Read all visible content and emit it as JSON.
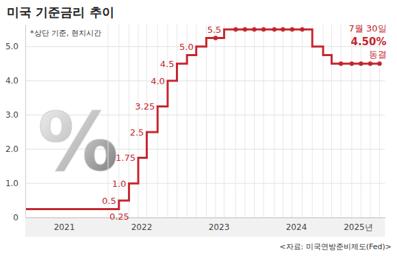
{
  "chart_data": {
    "type": "line",
    "title": "미국 기준금리 추이",
    "subtitle": "*상단 기준, 현지시간",
    "watermark": "%",
    "annotation": [
      "7월 30일",
      "4.50%",
      "동결"
    ],
    "source": "<자료: 미국연방준비제도(Fed)>",
    "xlim": [
      2021,
      2025.65
    ],
    "xticks": [
      {
        "value": 2021.5,
        "label": "2021"
      },
      {
        "value": 2022.5,
        "label": "2022"
      },
      {
        "value": 2023.5,
        "label": "2023"
      },
      {
        "value": 2024.5,
        "label": "2024"
      },
      {
        "value": 2025.3,
        "label": "2025년"
      }
    ],
    "ylim": [
      0,
      5.65
    ],
    "yticks": [
      0,
      {
        "value": 1,
        "label": "1.0"
      },
      {
        "value": 2,
        "label": "2.0"
      },
      {
        "value": 3,
        "label": "3.0"
      },
      {
        "value": 4,
        "label": "4.0"
      },
      {
        "value": 5,
        "label": "5.0"
      }
    ],
    "grid": true,
    "series": [
      {
        "type": "line",
        "line_style": "step",
        "color": "#c4262e",
        "data_labels": true,
        "x": [
          2021.0,
          2022.07,
          2022.21,
          2022.34,
          2022.46,
          2022.57,
          2022.71,
          2022.84,
          2022.96,
          2023.09,
          2023.21,
          2023.34,
          2023.57,
          2024.71,
          2024.85,
          2024.96,
          2025.58
        ],
        "values": [
          0.25,
          0.25,
          0.5,
          1,
          1.75,
          2.5,
          3.25,
          4,
          4.5,
          4.75,
          5,
          5.25,
          5.5,
          5,
          4.75,
          4.5,
          4.5
        ],
        "value_labels": [
          null,
          "0.25",
          "0.5",
          "1.0",
          "1.75",
          "2.5",
          "3.25",
          "4.0",
          "4.5",
          null,
          "5.0",
          null,
          "5.5",
          null,
          null,
          null,
          null
        ]
      },
      {
        "type": "scatter",
        "marker": "circle",
        "color": "#c4262e",
        "x": [
          2023.46,
          2023.72,
          2023.84,
          2023.96,
          2024.08,
          2024.22,
          2024.33,
          2024.45,
          2024.58,
          2025.08,
          2025.22,
          2025.34,
          2025.46,
          2025.58
        ],
        "values": [
          5.25,
          5.5,
          5.5,
          5.5,
          5.5,
          5.5,
          5.5,
          5.5,
          5.5,
          4.5,
          4.5,
          4.5,
          4.5,
          4.5
        ]
      }
    ]
  }
}
